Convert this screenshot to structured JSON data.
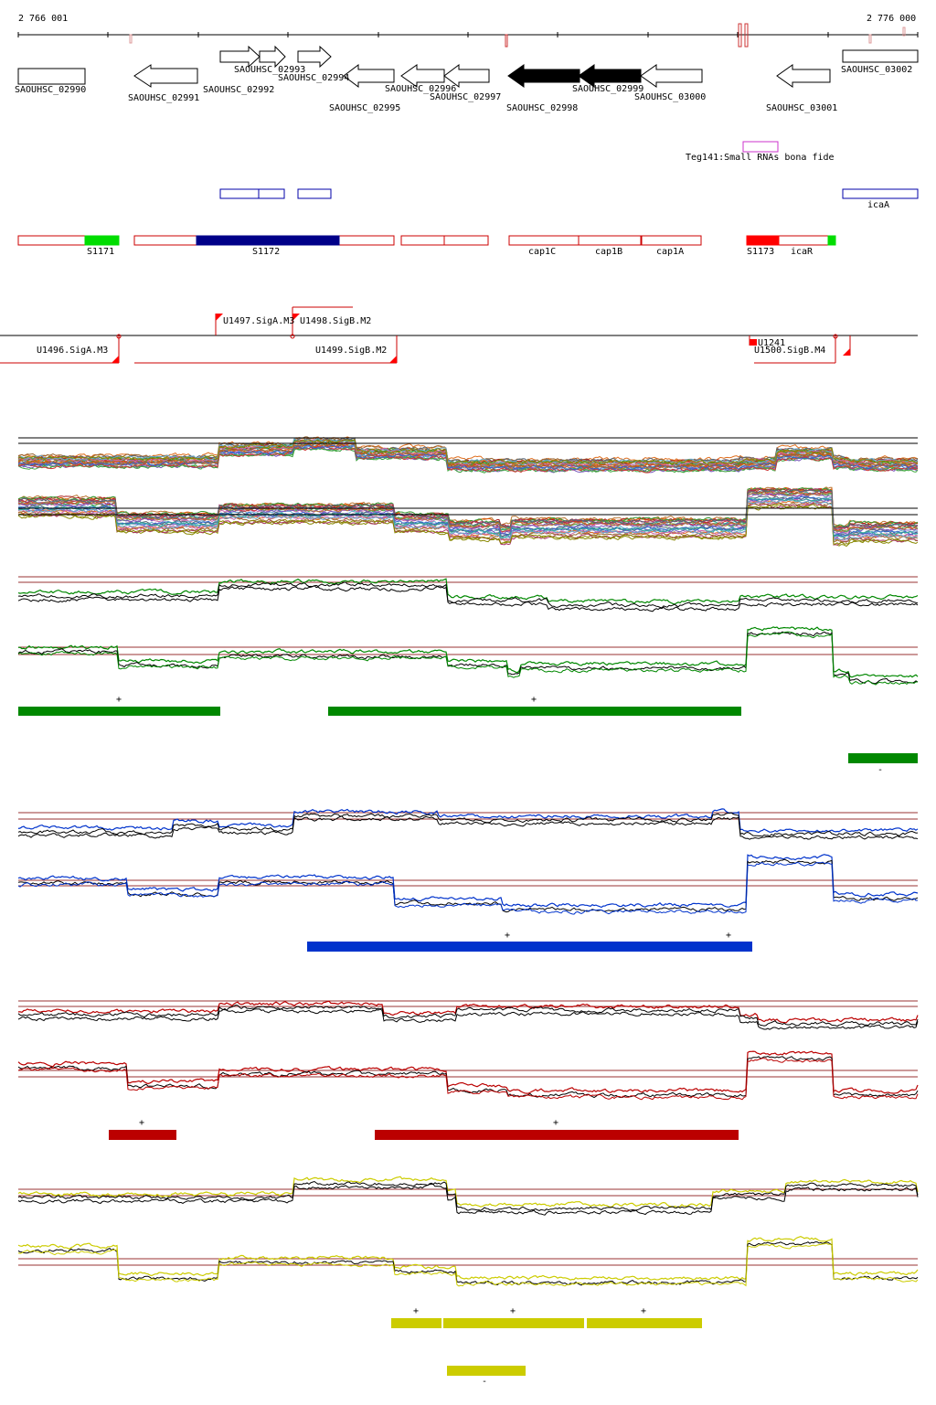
{
  "coords": {
    "start": "2 766 001",
    "end": "2 776 000"
  },
  "genes": [
    {
      "id": "SAOUHSC_02990",
      "dir": "none",
      "filled": false
    },
    {
      "id": "SAOUHSC_02991",
      "dir": "left",
      "filled": false
    },
    {
      "id": "SAOUHSC_02992",
      "dir": "right",
      "filled": false
    },
    {
      "id": "SAOUHSC_02993",
      "dir": "right",
      "filled": false
    },
    {
      "id": "SAOUHSC_02994",
      "dir": "right",
      "filled": false
    },
    {
      "id": "SAOUHSC_02995",
      "dir": "left",
      "filled": false
    },
    {
      "id": "SAOUHSC_02996",
      "dir": "left",
      "filled": false
    },
    {
      "id": "SAOUHSC_02997",
      "dir": "left",
      "filled": false
    },
    {
      "id": "SAOUHSC_02998",
      "dir": "left",
      "filled": true
    },
    {
      "id": "SAOUHSC_02999",
      "dir": "left",
      "filled": true
    },
    {
      "id": "SAOUHSC_03000",
      "dir": "left",
      "filled": false
    },
    {
      "id": "SAOUHSC_03001",
      "dir": "left",
      "filled": false
    },
    {
      "id": "SAOUHSC_03002",
      "dir": "none",
      "filled": false
    }
  ],
  "small_rna": {
    "label": "Teg141:Small RNAs bona fide",
    "color": "#cc33cc"
  },
  "blue_features": [
    {
      "label": ""
    },
    {
      "label": ""
    },
    {
      "label": ""
    },
    {
      "label": "icaA"
    }
  ],
  "segments": [
    {
      "label": "S1171"
    },
    {
      "label": "S1172"
    },
    {
      "label": ""
    },
    {
      "label": "cap1C"
    },
    {
      "label": "cap1B"
    },
    {
      "label": "cap1A"
    },
    {
      "label": "S1173"
    },
    {
      "label": "icaR"
    }
  ],
  "promoters": [
    {
      "label": "U1497.SigA.M3"
    },
    {
      "label": "U1498.SigB.M2"
    },
    {
      "label": "U1496.SigA.M3"
    },
    {
      "label": "U1499.SigB.M2"
    },
    {
      "label": "U1241"
    },
    {
      "label": "U1500.SigB.M4"
    }
  ],
  "conditions": [
    {
      "color": "#008800",
      "plus_label": "+",
      "minus_label": "-"
    },
    {
      "color": "#0033cc",
      "plus_label": "+",
      "minus_label": ""
    },
    {
      "color": "#bb0000",
      "plus_label": "+",
      "minus_label": ""
    },
    {
      "color": "#cccc00",
      "plus_label": "+",
      "minus_label": "-"
    }
  ],
  "colors": {
    "gene_outline": "#000000",
    "segment_outline": "#cc0000",
    "segment_navy": "#000088",
    "segment_green": "#00dd00",
    "segment_red": "#ff0000",
    "blue_outline": "#0000aa",
    "threshold": "#993333"
  }
}
